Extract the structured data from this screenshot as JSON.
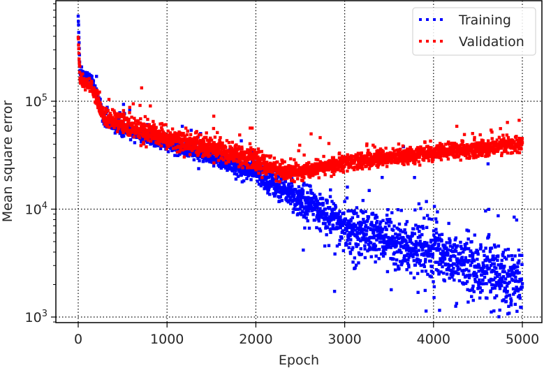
{
  "chart_data": {
    "type": "scatter",
    "title": "",
    "xlabel": "Epoch",
    "ylabel": "Mean square error",
    "xscale": "linear",
    "yscale": "log",
    "xlim": [
      -250,
      5250
    ],
    "ylim": [
      900,
      900000
    ],
    "xticks": [
      0,
      1000,
      2000,
      3000,
      4000,
      5000
    ],
    "xtick_labels": [
      "0",
      "1000",
      "2000",
      "3000",
      "4000",
      "5000"
    ],
    "yticks": [
      1000,
      10000,
      100000
    ],
    "ytick_labels": [
      {
        "base": "10",
        "exp": "3"
      },
      {
        "base": "10",
        "exp": "4"
      },
      {
        "base": "10",
        "exp": "5"
      }
    ],
    "grid": true,
    "grid_style": "dotted",
    "legend_position": "upper right",
    "series": [
      {
        "name": "Training",
        "color": "#0000ff",
        "linestyle": "dotted",
        "x": [
          0,
          20,
          50,
          150,
          220,
          300,
          500,
          1000,
          1500,
          2000,
          2500,
          3000,
          3500,
          4000,
          4500,
          5000
        ],
        "values": [
          620000,
          190000,
          180000,
          160000,
          110000,
          65000,
          55000,
          40000,
          30000,
          22000,
          12000,
          7000,
          5000,
          4000,
          2800,
          2200
        ],
        "noise_log10": [
          0.02,
          0.03,
          0.03,
          0.03,
          0.05,
          0.05,
          0.05,
          0.05,
          0.06,
          0.08,
          0.12,
          0.15,
          0.18,
          0.2,
          0.22,
          0.22
        ]
      },
      {
        "name": "Validation",
        "color": "#ff0000",
        "linestyle": "dotted",
        "x": [
          0,
          20,
          50,
          150,
          220,
          300,
          500,
          1000,
          1500,
          2000,
          2300,
          2500,
          3000,
          3500,
          4000,
          4500,
          5000
        ],
        "values": [
          390000,
          160000,
          150000,
          140000,
          100000,
          70000,
          62000,
          45000,
          37000,
          28000,
          22000,
          22000,
          27000,
          30000,
          33000,
          36000,
          40000
        ],
        "noise_log10": [
          0.02,
          0.04,
          0.04,
          0.04,
          0.06,
          0.07,
          0.08,
          0.08,
          0.08,
          0.08,
          0.07,
          0.06,
          0.06,
          0.06,
          0.06,
          0.06,
          0.06
        ]
      }
    ]
  },
  "legend": {
    "items": [
      {
        "label": "Training",
        "color": "#0000ff"
      },
      {
        "label": "Validation",
        "color": "#ff0000"
      }
    ]
  }
}
